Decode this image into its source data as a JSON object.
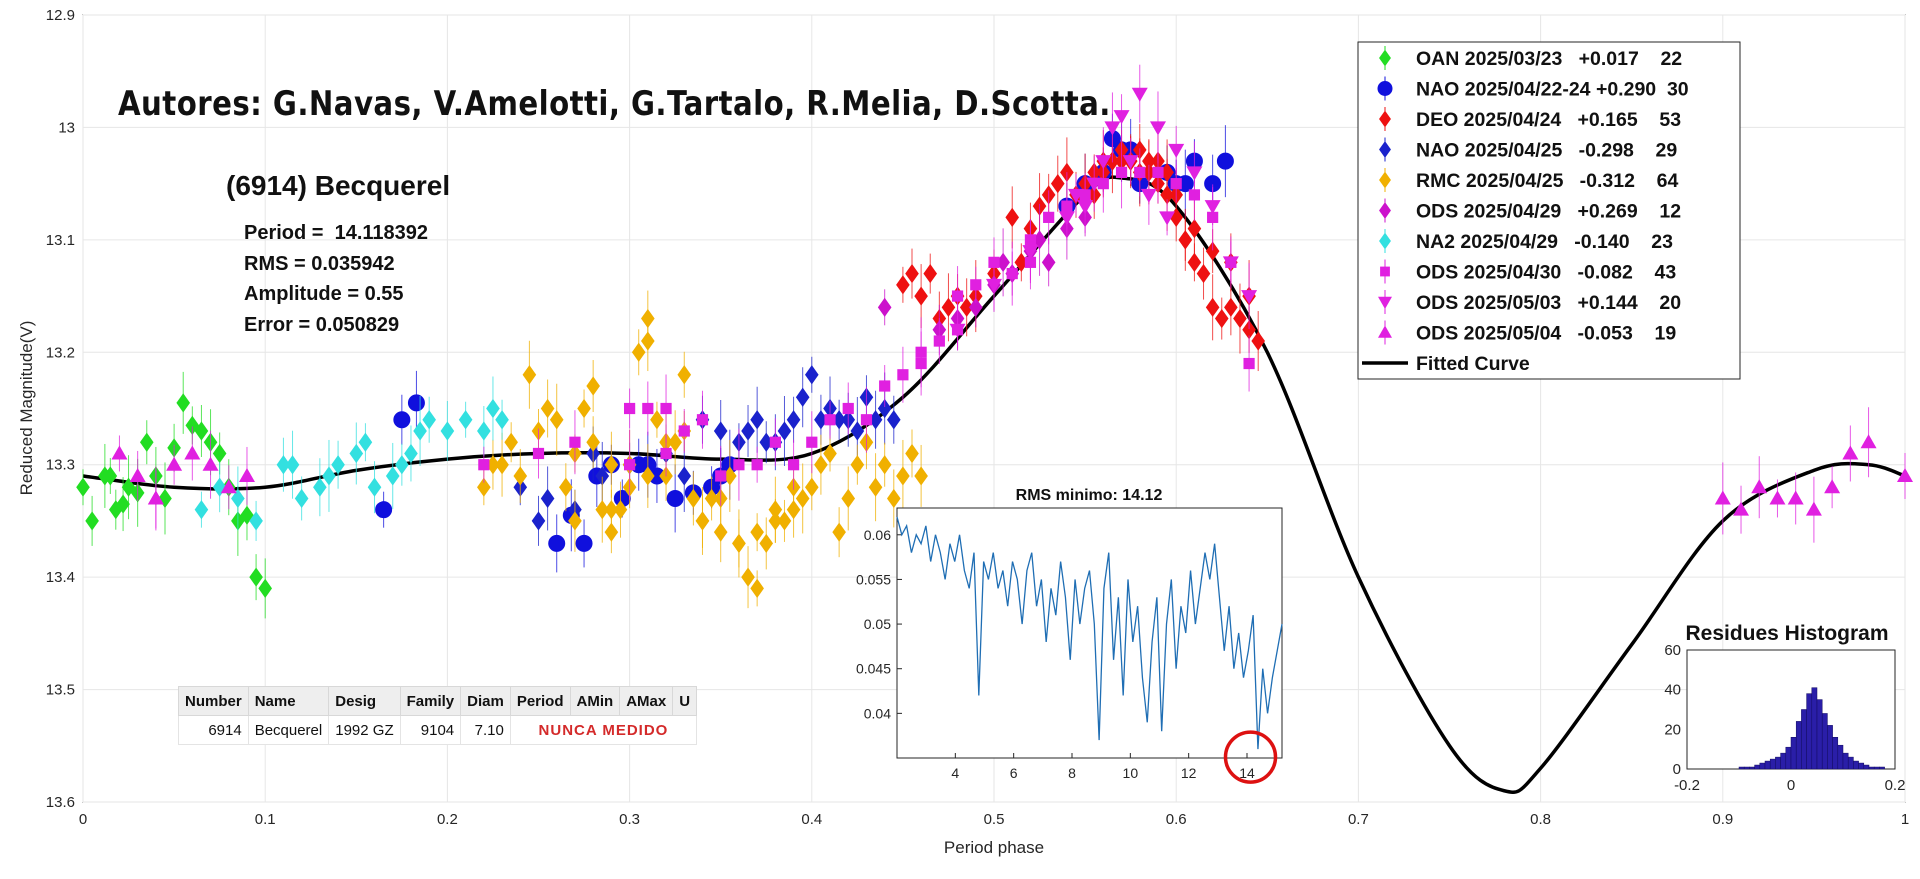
{
  "colors": {
    "OAN": "#22dd22",
    "NAO": "#1010dd",
    "DEO": "#ee1111",
    "NAO25": "#1a22cc",
    "RMC": "#f0b000",
    "ODS29": "#cc11cc",
    "NA2": "#33e0e0",
    "ODS30": "#e020e0",
    "ODS0503": "#e020e0",
    "ODS0504": "#e020e0",
    "fit": "#000000",
    "inset_line": "#1f6eb4",
    "histogram": "#2a1ea8",
    "highlight_circle": "#dd1111"
  },
  "annotations": {
    "authors": "Autores: G.Navas, V.Amelotti, G.Tartalo, R.Melia, D.Scotta.",
    "object_name": "(6914) Becquerel",
    "period_line": "Period =  14.118392",
    "rms_line": "RMS = 0.035942",
    "amplitude_line": "Amplitude = 0.55",
    "error_line": "Error = 0.050829"
  },
  "lcdb_table": {
    "headers": [
      "Number",
      "Name",
      "Desig",
      "Family",
      "Diam",
      "Period",
      "AMin",
      "AMax",
      "U"
    ],
    "row": {
      "number": "6914",
      "name": "Becquerel",
      "desig": "1992 GZ",
      "family": "9104",
      "diam": "7.10",
      "status": "NUNCA MEDIDO"
    }
  },
  "chart_data": [
    {
      "type": "scatter",
      "xlabel": "Period phase",
      "ylabel": "Reduced Magnitude(V)",
      "xlim": [
        0,
        1
      ],
      "ylim": [
        13.6,
        12.9
      ],
      "y_reversed": true,
      "grid": true,
      "legend_position": "top-right",
      "xticks": [
        "0",
        "0.1",
        "0.2",
        "0.3",
        "0.4",
        "0.5",
        "0.6",
        "0.7",
        "0.8",
        "0.9",
        "1"
      ],
      "yticks": [
        "12.9",
        "13",
        "13.1",
        "13.2",
        "13.3",
        "13.4",
        "13.5",
        "13.6"
      ],
      "series": [
        {
          "name": "OAN 2025/03/23   +0.017    22",
          "key": "OAN",
          "marker": "diamond",
          "x": [
            0.0,
            0.005,
            0.012,
            0.018,
            0.022,
            0.03,
            0.035,
            0.04,
            0.045,
            0.05,
            0.055,
            0.06,
            0.065,
            0.07,
            0.075,
            0.08,
            0.085,
            0.095,
            0.1,
            0.015,
            0.09,
            0.025
          ],
          "y": [
            13.32,
            13.35,
            13.31,
            13.34,
            13.335,
            13.325,
            13.28,
            13.31,
            13.33,
            13.285,
            13.245,
            13.265,
            13.27,
            13.28,
            13.29,
            13.32,
            13.35,
            13.4,
            13.41,
            13.31,
            13.345,
            13.32
          ]
        },
        {
          "name": "NAO 2025/04/22-24 +0.290  30",
          "key": "NAO",
          "marker": "circle",
          "x": [
            0.165,
            0.175,
            0.183,
            0.29,
            0.315,
            0.325,
            0.335,
            0.26,
            0.268,
            0.275,
            0.282,
            0.296,
            0.305,
            0.31,
            0.345,
            0.35,
            0.355,
            0.54,
            0.55,
            0.56,
            0.565,
            0.57,
            0.58,
            0.595,
            0.605,
            0.61,
            0.62,
            0.627,
            0.6,
            0.575
          ],
          "y": [
            13.34,
            13.26,
            13.245,
            13.3,
            13.31,
            13.33,
            13.325,
            13.37,
            13.345,
            13.37,
            13.31,
            13.33,
            13.3,
            13.3,
            13.32,
            13.31,
            13.3,
            13.07,
            13.05,
            13.04,
            13.01,
            13.02,
            13.05,
            13.04,
            13.05,
            13.03,
            13.05,
            13.03,
            13.05,
            13.02
          ]
        },
        {
          "name": "DEO 2025/04/24   +0.165    53",
          "key": "DEO",
          "marker": "diamond",
          "x": [
            0.45,
            0.455,
            0.46,
            0.465,
            0.47,
            0.475,
            0.48,
            0.485,
            0.49,
            0.5,
            0.51,
            0.515,
            0.52,
            0.525,
            0.53,
            0.535,
            0.54,
            0.545,
            0.55,
            0.555,
            0.56,
            0.565,
            0.57,
            0.575,
            0.58,
            0.585,
            0.59,
            0.595,
            0.6,
            0.605,
            0.61,
            0.615,
            0.62,
            0.625,
            0.63,
            0.635,
            0.64,
            0.645,
            0.565,
            0.575,
            0.585,
            0.59,
            0.6,
            0.61,
            0.62,
            0.63,
            0.64,
            0.555,
            0.56,
            0.57,
            0.58,
            0.595,
            0.605
          ],
          "y": [
            13.14,
            13.13,
            13.15,
            13.13,
            13.17,
            13.16,
            13.15,
            13.16,
            13.15,
            13.13,
            13.08,
            13.12,
            13.09,
            13.07,
            13.06,
            13.05,
            13.04,
            13.06,
            13.05,
            13.04,
            13.04,
            13.03,
            13.02,
            13.03,
            13.04,
            13.03,
            13.03,
            13.06,
            13.08,
            13.1,
            13.12,
            13.13,
            13.16,
            13.17,
            13.16,
            13.17,
            13.18,
            13.19,
            13.03,
            13.03,
            13.04,
            13.05,
            13.06,
            13.09,
            13.11,
            13.12,
            13.15,
            13.06,
            13.03,
            13.03,
            13.02,
            13.04,
            13.1
          ]
        },
        {
          "name": "NAO 2025/04/25   -0.298    29",
          "key": "NAO25",
          "marker": "diamond",
          "x": [
            0.24,
            0.25,
            0.255,
            0.27,
            0.28,
            0.285,
            0.3,
            0.32,
            0.33,
            0.34,
            0.35,
            0.36,
            0.365,
            0.37,
            0.375,
            0.38,
            0.385,
            0.39,
            0.395,
            0.4,
            0.405,
            0.41,
            0.415,
            0.42,
            0.425,
            0.43,
            0.435,
            0.44,
            0.445
          ],
          "y": [
            13.32,
            13.35,
            13.33,
            13.34,
            13.29,
            13.31,
            13.3,
            13.29,
            13.31,
            13.26,
            13.27,
            13.28,
            13.27,
            13.26,
            13.28,
            13.28,
            13.27,
            13.26,
            13.24,
            13.22,
            13.26,
            13.25,
            13.26,
            13.26,
            13.27,
            13.24,
            13.26,
            13.25,
            13.26
          ]
        },
        {
          "name": "RMC 2025/04/25   -0.312    64",
          "key": "RMC",
          "marker": "diamond",
          "x": [
            0.22,
            0.225,
            0.23,
            0.235,
            0.24,
            0.245,
            0.25,
            0.255,
            0.26,
            0.265,
            0.27,
            0.275,
            0.28,
            0.285,
            0.29,
            0.295,
            0.3,
            0.305,
            0.31,
            0.315,
            0.32,
            0.325,
            0.33,
            0.335,
            0.34,
            0.345,
            0.35,
            0.355,
            0.36,
            0.365,
            0.37,
            0.375,
            0.38,
            0.385,
            0.39,
            0.395,
            0.4,
            0.405,
            0.41,
            0.415,
            0.42,
            0.425,
            0.43,
            0.435,
            0.44,
            0.445,
            0.45,
            0.455,
            0.46,
            0.27,
            0.28,
            0.29,
            0.3,
            0.31,
            0.32,
            0.33,
            0.35,
            0.37,
            0.39,
            0.31,
            0.29,
            0.34,
            0.36,
            0.38
          ],
          "y": [
            13.32,
            13.3,
            13.3,
            13.28,
            13.31,
            13.22,
            13.27,
            13.25,
            13.26,
            13.32,
            13.35,
            13.25,
            13.23,
            13.34,
            13.36,
            13.34,
            13.3,
            13.2,
            13.19,
            13.26,
            13.31,
            13.28,
            13.27,
            13.33,
            13.35,
            13.33,
            13.33,
            13.31,
            13.37,
            13.4,
            13.36,
            13.37,
            13.34,
            13.35,
            13.34,
            13.33,
            13.32,
            13.3,
            13.29,
            13.36,
            13.33,
            13.3,
            13.28,
            13.32,
            13.3,
            13.33,
            13.31,
            13.29,
            13.31,
            13.29,
            13.28,
            13.3,
            13.32,
            13.17,
            13.28,
            13.22,
            13.36,
            13.41,
            13.32,
            13.31,
            13.34,
            13.35,
            13.37,
            13.35
          ]
        },
        {
          "name": "ODS 2025/04/29   +0.269    12",
          "key": "ODS29",
          "marker": "diamond",
          "x": [
            0.44,
            0.47,
            0.48,
            0.49,
            0.5,
            0.505,
            0.51,
            0.52,
            0.525,
            0.53,
            0.54,
            0.55
          ],
          "y": [
            13.16,
            13.18,
            13.17,
            13.16,
            13.14,
            13.12,
            13.13,
            13.11,
            13.1,
            13.12,
            13.09,
            13.08
          ]
        },
        {
          "name": "NA2 2025/04/29   -0.140    23",
          "key": "NA2",
          "marker": "diamond",
          "x": [
            0.065,
            0.075,
            0.085,
            0.095,
            0.11,
            0.115,
            0.12,
            0.13,
            0.135,
            0.14,
            0.15,
            0.155,
            0.16,
            0.17,
            0.175,
            0.18,
            0.185,
            0.19,
            0.2,
            0.21,
            0.22,
            0.225,
            0.23
          ],
          "y": [
            13.34,
            13.32,
            13.33,
            13.35,
            13.3,
            13.3,
            13.33,
            13.32,
            13.31,
            13.3,
            13.29,
            13.28,
            13.32,
            13.31,
            13.3,
            13.29,
            13.27,
            13.26,
            13.27,
            13.26,
            13.27,
            13.25,
            13.26
          ]
        },
        {
          "name": "ODS 2025/04/30   -0.082    43",
          "key": "ODS30",
          "marker": "square",
          "x": [
            0.22,
            0.25,
            0.27,
            0.3,
            0.31,
            0.32,
            0.33,
            0.34,
            0.36,
            0.38,
            0.4,
            0.41,
            0.42,
            0.43,
            0.44,
            0.45,
            0.46,
            0.47,
            0.48,
            0.49,
            0.5,
            0.51,
            0.52,
            0.53,
            0.54,
            0.55,
            0.56,
            0.57,
            0.58,
            0.59,
            0.6,
            0.61,
            0.62,
            0.63,
            0.64,
            0.3,
            0.32,
            0.35,
            0.37,
            0.39,
            0.46,
            0.48,
            0.52
          ],
          "y": [
            13.3,
            13.29,
            13.28,
            13.25,
            13.25,
            13.25,
            13.27,
            13.26,
            13.3,
            13.28,
            13.28,
            13.26,
            13.25,
            13.26,
            13.23,
            13.22,
            13.2,
            13.19,
            13.15,
            13.14,
            13.12,
            13.13,
            13.1,
            13.08,
            13.07,
            13.06,
            13.05,
            13.04,
            13.04,
            13.04,
            13.05,
            13.06,
            13.08,
            13.12,
            13.21,
            13.3,
            13.29,
            13.31,
            13.3,
            13.3,
            13.21,
            13.18,
            13.12
          ]
        },
        {
          "name": "ODS 2025/05/03   +0.144    20",
          "key": "ODS0503",
          "marker": "triangle-down",
          "x": [
            0.48,
            0.5,
            0.52,
            0.54,
            0.55,
            0.56,
            0.57,
            0.58,
            0.59,
            0.6,
            0.61,
            0.62,
            0.63,
            0.64,
            0.545,
            0.555,
            0.565,
            0.575,
            0.585,
            0.595
          ],
          "y": [
            13.18,
            13.14,
            13.11,
            13.08,
            13.07,
            13.03,
            12.99,
            12.97,
            13.0,
            13.02,
            13.04,
            13.07,
            13.12,
            13.15,
            13.06,
            13.05,
            13.0,
            13.03,
            13.06,
            13.08
          ]
        },
        {
          "name": "ODS 2025/05/04   -0.053    19",
          "key": "ODS0504",
          "marker": "triangle-up",
          "x": [
            0.02,
            0.03,
            0.04,
            0.05,
            0.06,
            0.07,
            0.08,
            0.09,
            0.9,
            0.91,
            0.92,
            0.93,
            0.94,
            0.95,
            0.96,
            0.97,
            0.98,
            1.0,
            0.04
          ],
          "y": [
            13.29,
            13.31,
            13.33,
            13.3,
            13.29,
            13.3,
            13.32,
            13.31,
            13.33,
            13.34,
            13.32,
            13.33,
            13.33,
            13.34,
            13.32,
            13.29,
            13.28,
            13.31,
            13.33
          ]
        },
        {
          "name": "Fitted Curve",
          "key": "fit",
          "marker": "line",
          "x": [
            0.0,
            0.05,
            0.1,
            0.15,
            0.2,
            0.25,
            0.3,
            0.35,
            0.4,
            0.45,
            0.5,
            0.55,
            0.57,
            0.6,
            0.65,
            0.7,
            0.75,
            0.78,
            0.8,
            0.85,
            0.9,
            0.95,
            0.98,
            1.0
          ],
          "y": [
            13.31,
            13.32,
            13.32,
            13.305,
            13.295,
            13.29,
            13.29,
            13.295,
            13.29,
            13.24,
            13.15,
            13.06,
            13.045,
            13.07,
            13.2,
            13.4,
            13.55,
            13.59,
            13.57,
            13.46,
            13.35,
            13.305,
            13.3,
            13.31
          ]
        }
      ]
    },
    {
      "type": "line",
      "title": "RMS minimo: 14.12",
      "xlim": [
        2,
        15.2
      ],
      "ylim": [
        0.035,
        0.063
      ],
      "xticks": [
        "4",
        "6",
        "8",
        "10",
        "12",
        "14"
      ],
      "yticks": [
        "0.04",
        "0.045",
        "0.05",
        "0.055",
        "0.06"
      ],
      "highlight": {
        "x": 14.12,
        "y": 0.036,
        "label": "minimum"
      },
      "series": [
        {
          "x_start": 2,
          "x_end": 15.2,
          "values": [
            0.062,
            0.06,
            0.061,
            0.058,
            0.06,
            0.059,
            0.061,
            0.057,
            0.06,
            0.058,
            0.055,
            0.059,
            0.057,
            0.06,
            0.056,
            0.054,
            0.058,
            0.042,
            0.057,
            0.055,
            0.058,
            0.054,
            0.056,
            0.052,
            0.057,
            0.055,
            0.05,
            0.056,
            0.058,
            0.052,
            0.055,
            0.048,
            0.054,
            0.051,
            0.057,
            0.053,
            0.046,
            0.055,
            0.05,
            0.054,
            0.056,
            0.05,
            0.037,
            0.054,
            0.058,
            0.046,
            0.053,
            0.042,
            0.055,
            0.048,
            0.052,
            0.044,
            0.039,
            0.048,
            0.053,
            0.038,
            0.05,
            0.055,
            0.045,
            0.052,
            0.049,
            0.056,
            0.05,
            0.054,
            0.058,
            0.055,
            0.059,
            0.053,
            0.047,
            0.052,
            0.045,
            0.049,
            0.044,
            0.047,
            0.051,
            0.036,
            0.045,
            0.04,
            0.044,
            0.047,
            0.05
          ]
        }
      ]
    },
    {
      "type": "bar",
      "title": "Residues Histogram",
      "xlim": [
        -0.2,
        0.2
      ],
      "ylim": [
        0,
        60
      ],
      "xticks": [
        "-0.2",
        "0",
        "0.2"
      ],
      "yticks": [
        "0",
        "20",
        "40",
        "60"
      ],
      "bin_width": 0.01,
      "bin_start": -0.1,
      "values": [
        1,
        1,
        1,
        2,
        3,
        4,
        5,
        6,
        8,
        11,
        16,
        24,
        30,
        38,
        41,
        35,
        28,
        22,
        16,
        12,
        8,
        6,
        4,
        3,
        2,
        1,
        1,
        1
      ]
    }
  ]
}
